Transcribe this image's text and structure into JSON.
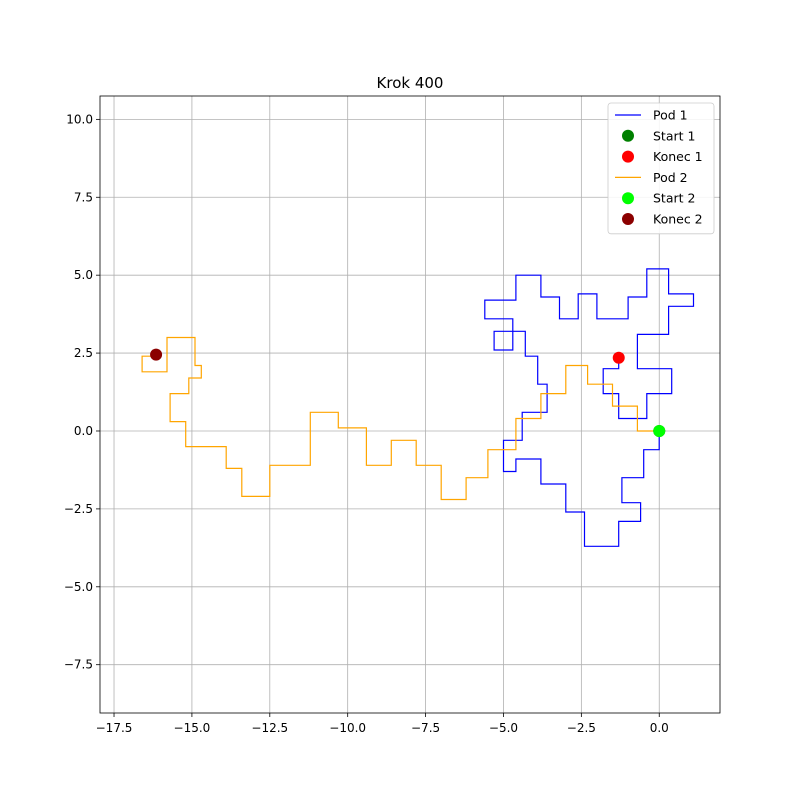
{
  "chart_data": {
    "type": "line",
    "title": "Krok 400",
    "xlabel": "",
    "ylabel": "",
    "xlim": [
      -17.95,
      1.95
    ],
    "ylim": [
      -9.05,
      10.75
    ],
    "xticks": [
      -17.5,
      -15.0,
      -12.5,
      -10.0,
      -7.5,
      -5.0,
      -2.5,
      0.0
    ],
    "xtick_labels": [
      "−17.5",
      "−15.0",
      "−12.5",
      "−10.0",
      "−7.5",
      "−5.0",
      "−2.5",
      "0.0"
    ],
    "yticks": [
      -7.5,
      -5.0,
      -2.5,
      0.0,
      2.5,
      5.0,
      7.5,
      10.0
    ],
    "ytick_labels": [
      "−7.5",
      "−5.0",
      "−2.5",
      "0.0",
      "2.5",
      "5.0",
      "7.5",
      "10.0"
    ],
    "grid": true,
    "legend_position": "top-right",
    "series": [
      {
        "name": "Pod 1",
        "color": "#0000ff",
        "points": [
          [
            0,
            0
          ],
          [
            0,
            -0.6
          ],
          [
            -0.5,
            -0.6
          ],
          [
            -0.5,
            -1.5
          ],
          [
            -1.2,
            -1.5
          ],
          [
            -1.2,
            -2.3
          ],
          [
            -0.6,
            -2.3
          ],
          [
            -0.6,
            -2.9
          ],
          [
            -1.3,
            -2.9
          ],
          [
            -1.3,
            -3.7
          ],
          [
            -2.4,
            -3.7
          ],
          [
            -2.4,
            -2.6
          ],
          [
            -3.0,
            -2.6
          ],
          [
            -3.0,
            -1.7
          ],
          [
            -3.8,
            -1.7
          ],
          [
            -3.8,
            -0.9
          ],
          [
            -4.6,
            -0.9
          ],
          [
            -4.6,
            -1.3
          ],
          [
            -5.0,
            -1.3
          ],
          [
            -5.0,
            -0.3
          ],
          [
            -4.4,
            -0.3
          ],
          [
            -4.4,
            0.6
          ],
          [
            -3.6,
            0.6
          ],
          [
            -3.6,
            1.5
          ],
          [
            -3.9,
            1.5
          ],
          [
            -3.9,
            2.4
          ],
          [
            -4.3,
            2.4
          ],
          [
            -4.3,
            3.2
          ],
          [
            -5.3,
            3.2
          ],
          [
            -5.3,
            2.6
          ],
          [
            -4.7,
            2.6
          ],
          [
            -4.7,
            3.6
          ],
          [
            -5.6,
            3.6
          ],
          [
            -5.6,
            4.2
          ],
          [
            -4.6,
            4.2
          ],
          [
            -4.6,
            5.0
          ],
          [
            -3.8,
            5.0
          ],
          [
            -3.8,
            4.3
          ],
          [
            -3.2,
            4.3
          ],
          [
            -3.2,
            3.6
          ],
          [
            -2.6,
            3.6
          ],
          [
            -2.6,
            4.4
          ],
          [
            -2.0,
            4.4
          ],
          [
            -2.0,
            3.6
          ],
          [
            -1.0,
            3.6
          ],
          [
            -1.0,
            4.3
          ],
          [
            -0.4,
            4.3
          ],
          [
            -0.4,
            5.2
          ],
          [
            0.3,
            5.2
          ],
          [
            0.3,
            4.4
          ],
          [
            1.1,
            4.4
          ],
          [
            1.1,
            4.0
          ],
          [
            0.3,
            4.0
          ],
          [
            0.3,
            3.1
          ],
          [
            -0.7,
            3.1
          ],
          [
            -0.7,
            2.0
          ],
          [
            0.4,
            2.0
          ],
          [
            0.4,
            1.2
          ],
          [
            -0.4,
            1.2
          ],
          [
            -0.4,
            0.4
          ],
          [
            -1.3,
            0.4
          ],
          [
            -1.3,
            1.2
          ],
          [
            -1.8,
            1.2
          ],
          [
            -1.8,
            2.0
          ],
          [
            -1.3,
            2.0
          ],
          [
            -1.3,
            2.35
          ]
        ]
      },
      {
        "name": "Pod 2",
        "color": "#ffa500",
        "points": [
          [
            0,
            0
          ],
          [
            -0.7,
            0
          ],
          [
            -0.7,
            0.8
          ],
          [
            -1.5,
            0.8
          ],
          [
            -1.5,
            1.5
          ],
          [
            -2.3,
            1.5
          ],
          [
            -2.3,
            2.1
          ],
          [
            -3.0,
            2.1
          ],
          [
            -3.0,
            1.2
          ],
          [
            -3.8,
            1.2
          ],
          [
            -3.8,
            0.4
          ],
          [
            -4.6,
            0.4
          ],
          [
            -4.6,
            -0.6
          ],
          [
            -5.5,
            -0.6
          ],
          [
            -5.5,
            -1.5
          ],
          [
            -6.2,
            -1.5
          ],
          [
            -6.2,
            -2.2
          ],
          [
            -7.0,
            -2.2
          ],
          [
            -7.0,
            -1.1
          ],
          [
            -7.8,
            -1.1
          ],
          [
            -7.8,
            -0.3
          ],
          [
            -8.6,
            -0.3
          ],
          [
            -8.6,
            -1.1
          ],
          [
            -9.4,
            -1.1
          ],
          [
            -9.4,
            0.1
          ],
          [
            -10.3,
            0.1
          ],
          [
            -10.3,
            0.6
          ],
          [
            -11.2,
            0.6
          ],
          [
            -11.2,
            -1.1
          ],
          [
            -12.5,
            -1.1
          ],
          [
            -12.5,
            -2.1
          ],
          [
            -13.4,
            -2.1
          ],
          [
            -13.4,
            -1.2
          ],
          [
            -13.9,
            -1.2
          ],
          [
            -13.9,
            -0.5
          ],
          [
            -15.2,
            -0.5
          ],
          [
            -15.2,
            0.3
          ],
          [
            -15.7,
            0.3
          ],
          [
            -15.7,
            1.2
          ],
          [
            -15.1,
            1.2
          ],
          [
            -15.1,
            1.7
          ],
          [
            -14.7,
            1.7
          ],
          [
            -14.7,
            2.1
          ],
          [
            -14.9,
            2.1
          ],
          [
            -14.9,
            3.0
          ],
          [
            -15.8,
            3.0
          ],
          [
            -15.8,
            1.9
          ],
          [
            -16.6,
            1.9
          ],
          [
            -16.6,
            2.4
          ],
          [
            -16.15,
            2.4
          ],
          [
            -16.15,
            2.45
          ]
        ]
      }
    ],
    "markers": [
      {
        "name": "Start 1",
        "x": 0.0,
        "y": 0.0,
        "color": "#008000"
      },
      {
        "name": "Konec 1",
        "x": -1.3,
        "y": 2.35,
        "color": "#ff0000"
      },
      {
        "name": "Start 2",
        "x": 0.0,
        "y": 0.0,
        "color": "#00ff00"
      },
      {
        "name": "Konec 2",
        "x": -16.15,
        "y": 2.45,
        "color": "#8b0000"
      }
    ],
    "legend": [
      {
        "label": "Pod 1",
        "kind": "line",
        "color": "#0000ff"
      },
      {
        "label": "Start 1",
        "kind": "marker",
        "color": "#008000"
      },
      {
        "label": "Konec 1",
        "kind": "marker",
        "color": "#ff0000"
      },
      {
        "label": "Pod 2",
        "kind": "line",
        "color": "#ffa500"
      },
      {
        "label": "Start 2",
        "kind": "marker",
        "color": "#00ff00"
      },
      {
        "label": "Konec 2",
        "kind": "marker",
        "color": "#8b0000"
      }
    ]
  }
}
